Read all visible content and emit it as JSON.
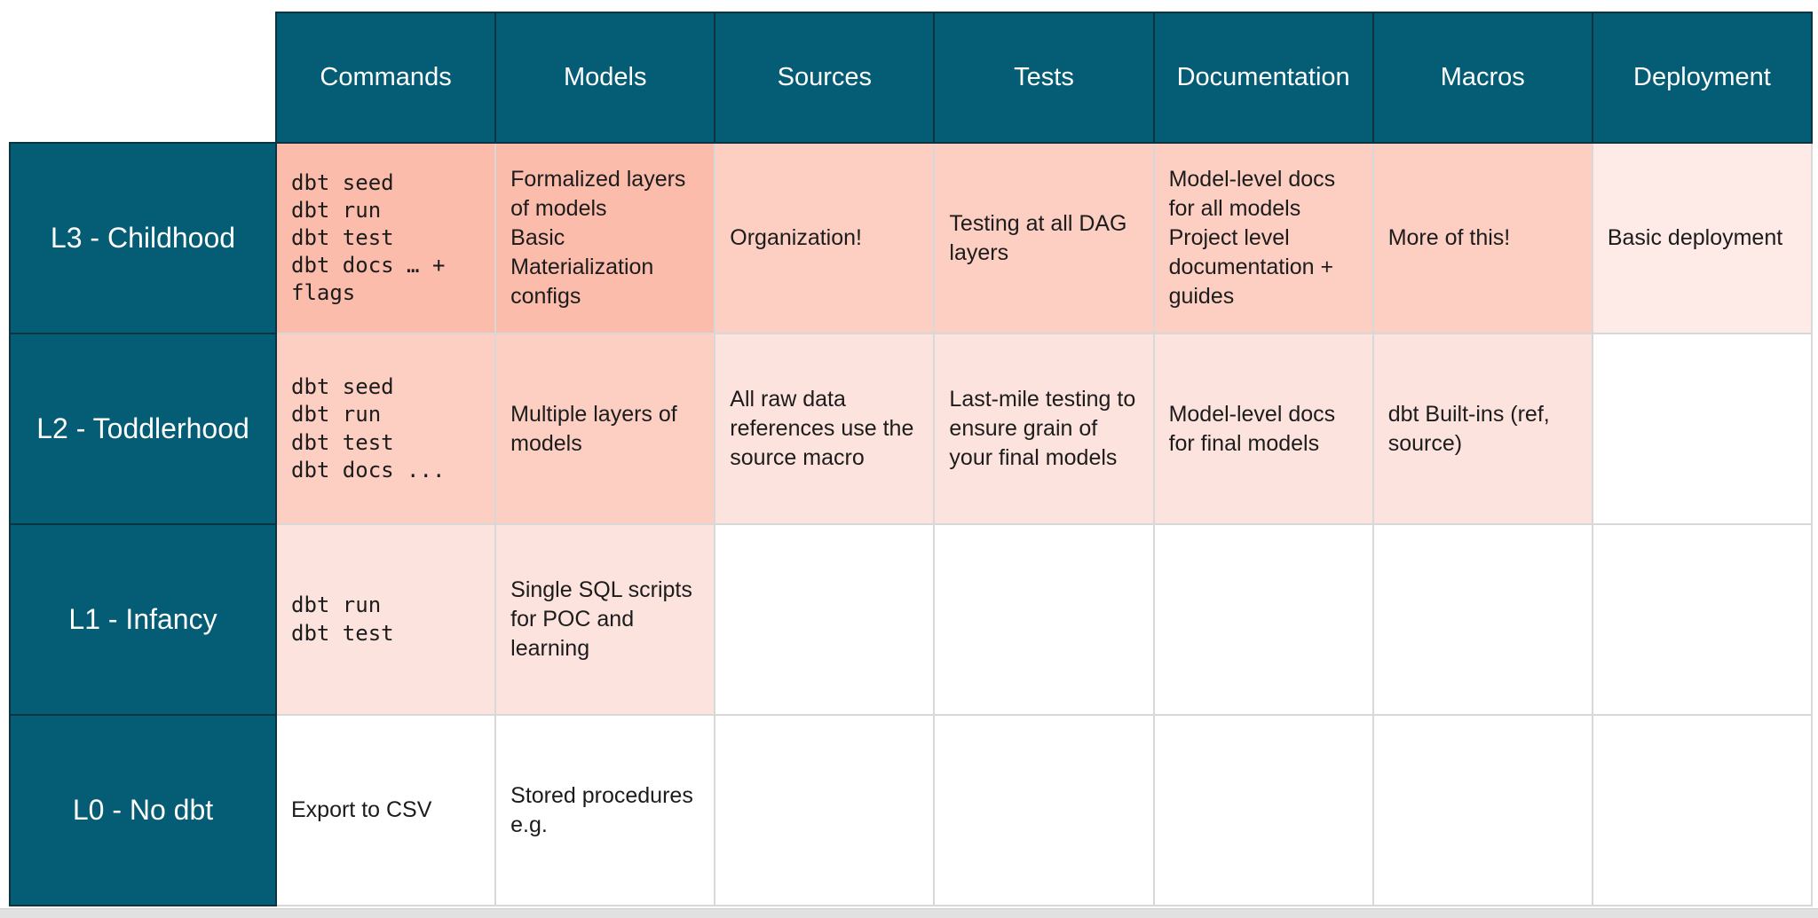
{
  "palette": {
    "header_bg": "#055C75",
    "header_text": "#FFFFFF",
    "cell_text": "#1C1C1C",
    "dark_border": "#0C3440",
    "grid_line": "#D8D8D8",
    "scrollbar_strip": "#E1E1E1",
    "shade_strong": "#FBBCAB",
    "shade_medium": "#FCCFC2",
    "shade_light": "#FDE3DE",
    "shade_faint": "#FEEAE6",
    "shade_none": "#FFFFFF"
  },
  "table": {
    "columns": [
      {
        "id": "commands",
        "label": "Commands"
      },
      {
        "id": "models",
        "label": "Models"
      },
      {
        "id": "sources",
        "label": "Sources"
      },
      {
        "id": "tests",
        "label": "Tests"
      },
      {
        "id": "documentation",
        "label": "Documentation"
      },
      {
        "id": "macros",
        "label": "Macros"
      },
      {
        "id": "deployment",
        "label": "Deployment"
      }
    ],
    "rows": [
      {
        "id": "l3",
        "label": "L3 - Childhood",
        "cells": [
          {
            "text": "dbt seed\ndbt run\ndbt test\ndbt docs … +\nflags",
            "shade": "strong",
            "code": true
          },
          {
            "text": "Formalized layers of models\nBasic Materialization configs",
            "shade": "strong",
            "code": false
          },
          {
            "text": "Organization!",
            "shade": "medium",
            "code": false
          },
          {
            "text": "Testing at all DAG layers",
            "shade": "medium",
            "code": false
          },
          {
            "text": "Model-level docs for all models\nProject level documentation + guides",
            "shade": "medium",
            "code": false
          },
          {
            "text": "More of this!",
            "shade": "medium",
            "code": false
          },
          {
            "text": "Basic deployment",
            "shade": "faint",
            "code": false
          }
        ]
      },
      {
        "id": "l2",
        "label": "L2 - Toddlerhood",
        "cells": [
          {
            "text": "dbt seed\ndbt run\ndbt test\ndbt docs ...",
            "shade": "medium",
            "code": true
          },
          {
            "text": "Multiple layers of models",
            "shade": "medium",
            "code": false
          },
          {
            "text": "All raw data references use the source macro",
            "shade": "light",
            "code": false
          },
          {
            "text": "Last-mile testing to ensure grain of your final models",
            "shade": "light",
            "code": false
          },
          {
            "text": "Model-level docs for final models",
            "shade": "light",
            "code": false
          },
          {
            "text": "dbt Built-ins (ref, source)",
            "shade": "light",
            "code": false
          },
          {
            "text": "",
            "shade": "none",
            "code": false
          }
        ]
      },
      {
        "id": "l1",
        "label": "L1 - Infancy",
        "cells": [
          {
            "text": "dbt run\ndbt test",
            "shade": "light",
            "code": true
          },
          {
            "text": "Single SQL scripts for POC and learning",
            "shade": "light",
            "code": false
          },
          {
            "text": "",
            "shade": "none",
            "code": false
          },
          {
            "text": "",
            "shade": "none",
            "code": false
          },
          {
            "text": "",
            "shade": "none",
            "code": false
          },
          {
            "text": "",
            "shade": "none",
            "code": false
          },
          {
            "text": "",
            "shade": "none",
            "code": false
          }
        ]
      },
      {
        "id": "l0",
        "label": "L0 - No dbt",
        "cells": [
          {
            "text": "Export to CSV",
            "shade": "none",
            "code": false
          },
          {
            "text": "Stored procedures e.g.",
            "shade": "none",
            "code": false
          },
          {
            "text": "",
            "shade": "none",
            "code": false
          },
          {
            "text": "",
            "shade": "none",
            "code": false
          },
          {
            "text": "",
            "shade": "none",
            "code": false
          },
          {
            "text": "",
            "shade": "none",
            "code": false
          },
          {
            "text": "",
            "shade": "none",
            "code": false
          }
        ]
      }
    ]
  },
  "scrollbar": {
    "present": true
  }
}
